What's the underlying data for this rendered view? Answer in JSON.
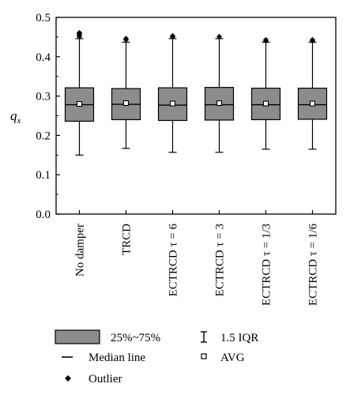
{
  "chart_data": {
    "type": "box",
    "ylabel": "q",
    "ylabel_subscript": "x",
    "ylim": [
      0.0,
      0.5
    ],
    "yticks": [
      "0.0",
      "0.1",
      "0.2",
      "0.3",
      "0.4",
      "0.5"
    ],
    "categories": [
      "No damper",
      "TRCD",
      "ECTRCD τ = 6",
      "ECTRCD τ = 3",
      "ECTRCD τ = 1/3",
      "ECTRCD τ = 1/6"
    ],
    "series": [
      {
        "q1": 0.236,
        "median": 0.278,
        "q3": 0.321,
        "whisker_low": 0.15,
        "whisker_high": 0.446,
        "avg": 0.28,
        "outliers": [
          0.451,
          0.455,
          0.458,
          0.461
        ]
      },
      {
        "q1": 0.24,
        "median": 0.279,
        "q3": 0.319,
        "whisker_low": 0.167,
        "whisker_high": 0.437,
        "avg": 0.282,
        "outliers": [
          0.443,
          0.446
        ]
      },
      {
        "q1": 0.238,
        "median": 0.277,
        "q3": 0.321,
        "whisker_low": 0.157,
        "whisker_high": 0.446,
        "avg": 0.281,
        "outliers": [
          0.45,
          0.453
        ]
      },
      {
        "q1": 0.239,
        "median": 0.278,
        "q3": 0.322,
        "whisker_low": 0.157,
        "whisker_high": 0.446,
        "avg": 0.282,
        "outliers": [
          0.451
        ]
      },
      {
        "q1": 0.24,
        "median": 0.278,
        "q3": 0.32,
        "whisker_low": 0.165,
        "whisker_high": 0.437,
        "avg": 0.281,
        "outliers": [
          0.44,
          0.443
        ]
      },
      {
        "q1": 0.241,
        "median": 0.278,
        "q3": 0.32,
        "whisker_low": 0.165,
        "whisker_high": 0.437,
        "avg": 0.281,
        "outliers": [
          0.44,
          0.443
        ]
      }
    ],
    "colors": {
      "box_fill": "#8c8c8c",
      "stroke": "#000000"
    }
  },
  "legend": {
    "box_label": "25%~75%",
    "median_label": "Median line",
    "outlier_label": "Outlier",
    "iqr_label": "1.5 IQR",
    "avg_label": "AVG"
  }
}
